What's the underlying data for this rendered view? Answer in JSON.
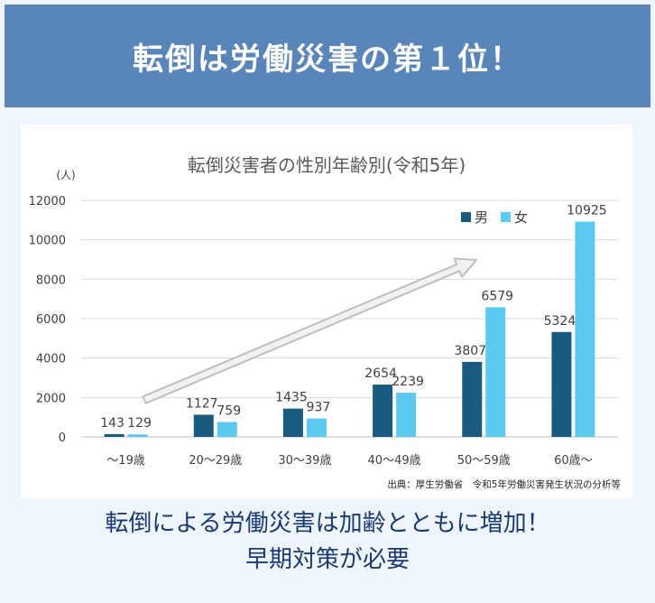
{
  "banner": {
    "title": "転倒は労働災害の第１位！"
  },
  "footer": {
    "line1": "転倒による労働災害は加齢とともに増加！",
    "line2": "早期対策が必要"
  },
  "chart_data": {
    "type": "bar",
    "title": "転倒災害者の性別年齢別(令和5年)",
    "unit_label": "(人)",
    "source": "出典：厚生労働省　令和5年労働災害発生状況の分析等",
    "categories": [
      "～19歳",
      "20～29歳",
      "30～39歳",
      "40～49歳",
      "50～59歳",
      "60歳～"
    ],
    "series": [
      {
        "name": "男",
        "color": "#1b5a80",
        "values": [
          143,
          1127,
          1435,
          2654,
          3807,
          5324
        ]
      },
      {
        "name": "女",
        "color": "#5ccaf0",
        "values": [
          129,
          759,
          937,
          2239,
          6579,
          10925
        ]
      }
    ],
    "yticks": [
      0,
      2000,
      4000,
      6000,
      8000,
      10000,
      12000
    ],
    "ylim": [
      0,
      12000
    ],
    "grid": true,
    "legend_position": "top-right",
    "annotation": "trend-arrow"
  }
}
